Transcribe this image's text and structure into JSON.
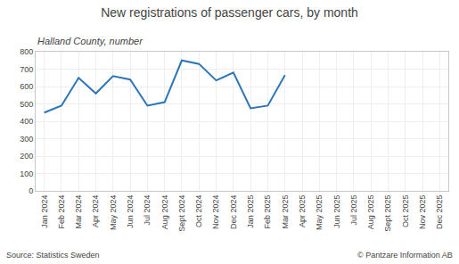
{
  "chart_data": {
    "type": "line",
    "title": "New registrations of passenger cars, by month",
    "subtitle": "Halland County, number",
    "annotations": [
      "Source: Statistics Sweden",
      "© Pantzare Information AB"
    ],
    "categories": [
      "Jan 2024",
      "Feb 2024",
      "Mar 2024",
      "Apr 2024",
      "May 2024",
      "Jun 2024",
      "Jul 2024",
      "Aug 2024",
      "Sept 2024",
      "Oct 2024",
      "Nov 2024",
      "Dec 2024",
      "Jan 2025",
      "Feb 2025",
      "Mar 2025",
      "Apr 2025",
      "May 2025",
      "Jun 2025",
      "Jul 2025",
      "Aug 2025",
      "Sept 2025",
      "Oct 2025",
      "Nov 2025",
      "Dec 2025"
    ],
    "values": [
      450,
      490,
      650,
      560,
      660,
      640,
      490,
      510,
      750,
      730,
      635,
      680,
      475,
      490,
      665,
      null,
      null,
      null,
      null,
      null,
      null,
      null,
      null,
      null
    ],
    "color": "#2e75b6",
    "ylim": [
      0,
      800
    ],
    "yticks": [
      0,
      100,
      200,
      300,
      400,
      500,
      600,
      700,
      800
    ],
    "grid": true
  }
}
